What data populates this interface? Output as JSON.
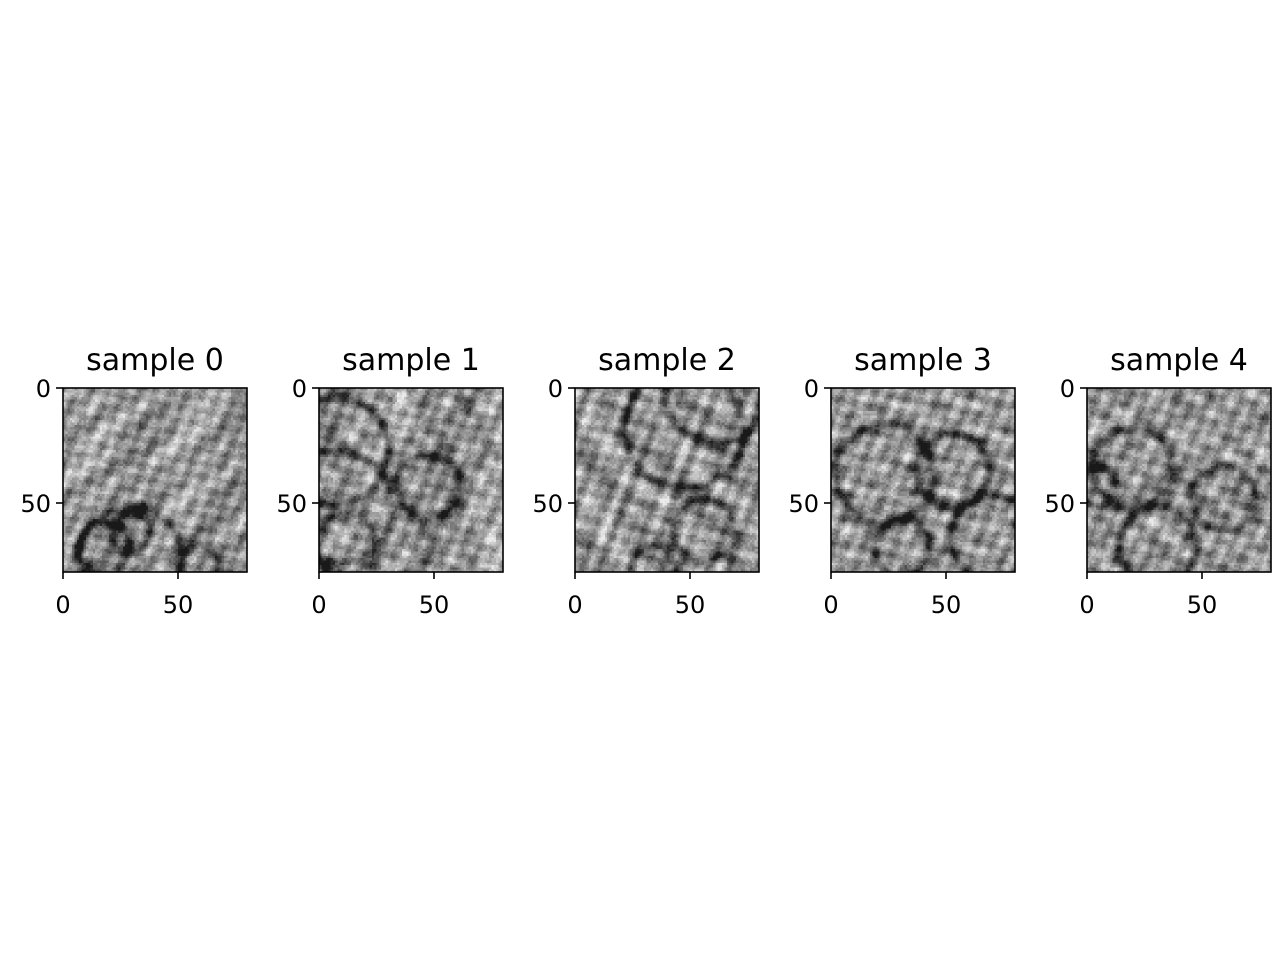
{
  "chart_data": [
    {
      "type": "image",
      "title": "sample 0",
      "xlim": [
        0,
        80
      ],
      "ylim": [
        80,
        0
      ],
      "xticks": [
        0,
        50
      ],
      "yticks": [
        0,
        50
      ],
      "colormap": "gray",
      "seed": 11
    },
    {
      "type": "image",
      "title": "sample 1",
      "xlim": [
        0,
        80
      ],
      "ylim": [
        80,
        0
      ],
      "xticks": [
        0,
        50
      ],
      "yticks": [
        0,
        50
      ],
      "colormap": "gray",
      "seed": 23
    },
    {
      "type": "image",
      "title": "sample 2",
      "xlim": [
        0,
        80
      ],
      "ylim": [
        80,
        0
      ],
      "xticks": [
        0,
        50
      ],
      "yticks": [
        0,
        50
      ],
      "colormap": "gray",
      "seed": 37
    },
    {
      "type": "image",
      "title": "sample 3",
      "xlim": [
        0,
        80
      ],
      "ylim": [
        80,
        0
      ],
      "xticks": [
        0,
        50
      ],
      "yticks": [
        0,
        50
      ],
      "colormap": "gray",
      "seed": 41
    },
    {
      "type": "image",
      "title": "sample 4",
      "xlim": [
        0,
        80
      ],
      "ylim": [
        80,
        0
      ],
      "xticks": [
        0,
        50
      ],
      "yticks": [
        0,
        50
      ],
      "colormap": "gray",
      "seed": 53
    }
  ],
  "colors": {
    "background": "#ffffff",
    "axis": "#000000",
    "text": "#000000"
  }
}
